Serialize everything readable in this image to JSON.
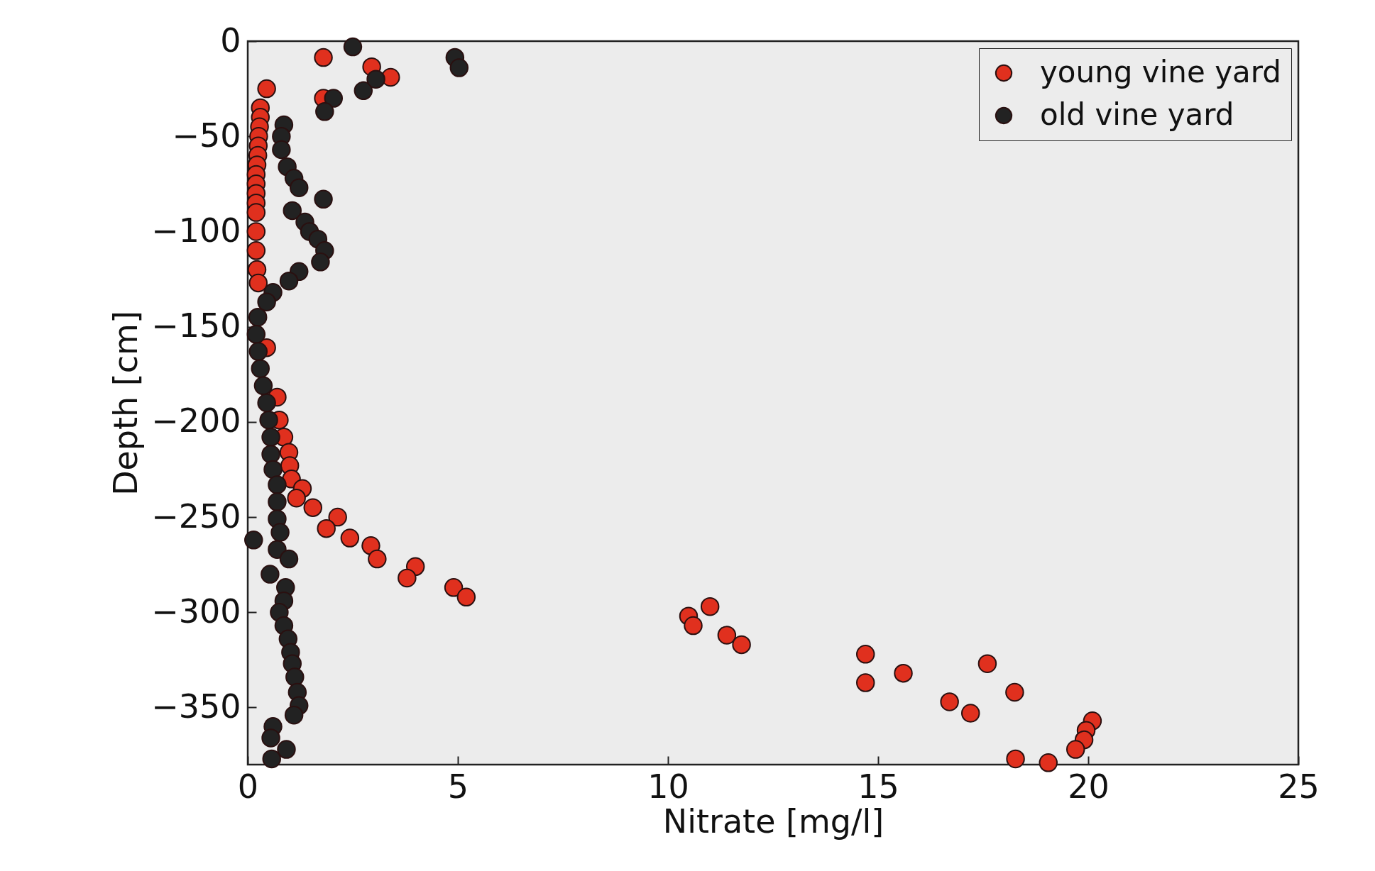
{
  "chart_data": {
    "type": "scatter",
    "xlabel": "Nitrate [mg/l]",
    "ylabel": "Depth [cm]",
    "xlim": [
      0,
      25
    ],
    "xticks": [
      0,
      5,
      10,
      15,
      20,
      25
    ],
    "ylim": [
      -380,
      0
    ],
    "yticks": [
      0,
      -50,
      -100,
      -150,
      -200,
      -250,
      -300,
      -350
    ],
    "grid": false,
    "legend": "top right",
    "marker": "circle",
    "series": [
      {
        "name": "young vine yard",
        "color": "#e0301e",
        "x": [
          1.8,
          2.95,
          3.4,
          1.8,
          0.45,
          0.3,
          0.3,
          0.28,
          0.26,
          0.25,
          0.24,
          0.22,
          0.2,
          0.2,
          0.2,
          0.2,
          0.2,
          0.2,
          0.2,
          0.22,
          0.25,
          0.45,
          0.7,
          0.75,
          0.86,
          0.98,
          1.0,
          1.04,
          1.3,
          1.16,
          1.55,
          2.14,
          1.87,
          2.43,
          2.93,
          3.08,
          3.99,
          3.79,
          4.9,
          5.2,
          10.49,
          10.6,
          11.0,
          11.4,
          11.75,
          14.7,
          14.7,
          15.6,
          17.6,
          18.25,
          16.7,
          17.2,
          20.1,
          19.95,
          19.9,
          19.7,
          18.27,
          19.05
        ],
        "values": [
          -8.6,
          -13.5,
          -19,
          -30,
          -25,
          -35,
          -40,
          -45,
          -50,
          -55,
          -60,
          -65,
          -70,
          -75,
          -80,
          -85,
          -90,
          -100,
          -110,
          -120,
          -127,
          -161,
          -187,
          -199,
          -208,
          -216,
          -223,
          -230,
          -235,
          -240,
          -245,
          -250,
          -256,
          -261,
          -265,
          -272,
          -276,
          -282,
          -287,
          -292,
          -302,
          -307,
          -297,
          -312,
          -317,
          -322,
          -337,
          -332,
          -327,
          -342,
          -347,
          -353,
          -357,
          -362,
          -367,
          -372,
          -377,
          -379
        ]
      },
      {
        "name": "old vine yard",
        "color": "#222222",
        "x": [
          2.5,
          4.93,
          5.03,
          2.75,
          3.05,
          2.04,
          1.83,
          0.86,
          0.8,
          0.8,
          0.94,
          1.1,
          1.22,
          1.8,
          1.06,
          1.36,
          1.47,
          1.67,
          1.83,
          1.73,
          1.22,
          0.98,
          0.6,
          0.45,
          0.24,
          0.2,
          0.25,
          0.3,
          0.37,
          0.45,
          0.5,
          0.55,
          0.55,
          0.6,
          0.7,
          0.7,
          0.7,
          0.14,
          0.77,
          0.7,
          0.98,
          0.53,
          0.9,
          0.86,
          0.75,
          0.86,
          0.96,
          1.02,
          1.06,
          1.12,
          1.18,
          1.22,
          1.1,
          0.6,
          0.55,
          0.92,
          0.57
        ],
        "values": [
          -3,
          -8.6,
          -14,
          -26,
          -20,
          -30,
          -37,
          -44,
          -50,
          -57,
          -66,
          -72,
          -77,
          -83,
          -89,
          -95,
          -100,
          -104,
          -110,
          -116,
          -121,
          -126,
          -132,
          -137,
          -145,
          -154,
          -163,
          -172,
          -181,
          -190,
          -199,
          -208,
          -217,
          -225,
          -233,
          -242,
          -251,
          -262,
          -258,
          -267,
          -272,
          -280,
          -287,
          -294,
          -300,
          -307,
          -314,
          -321,
          -327,
          -334,
          -342,
          -349,
          -354,
          -360,
          -366,
          -372,
          -377
        ]
      }
    ]
  }
}
